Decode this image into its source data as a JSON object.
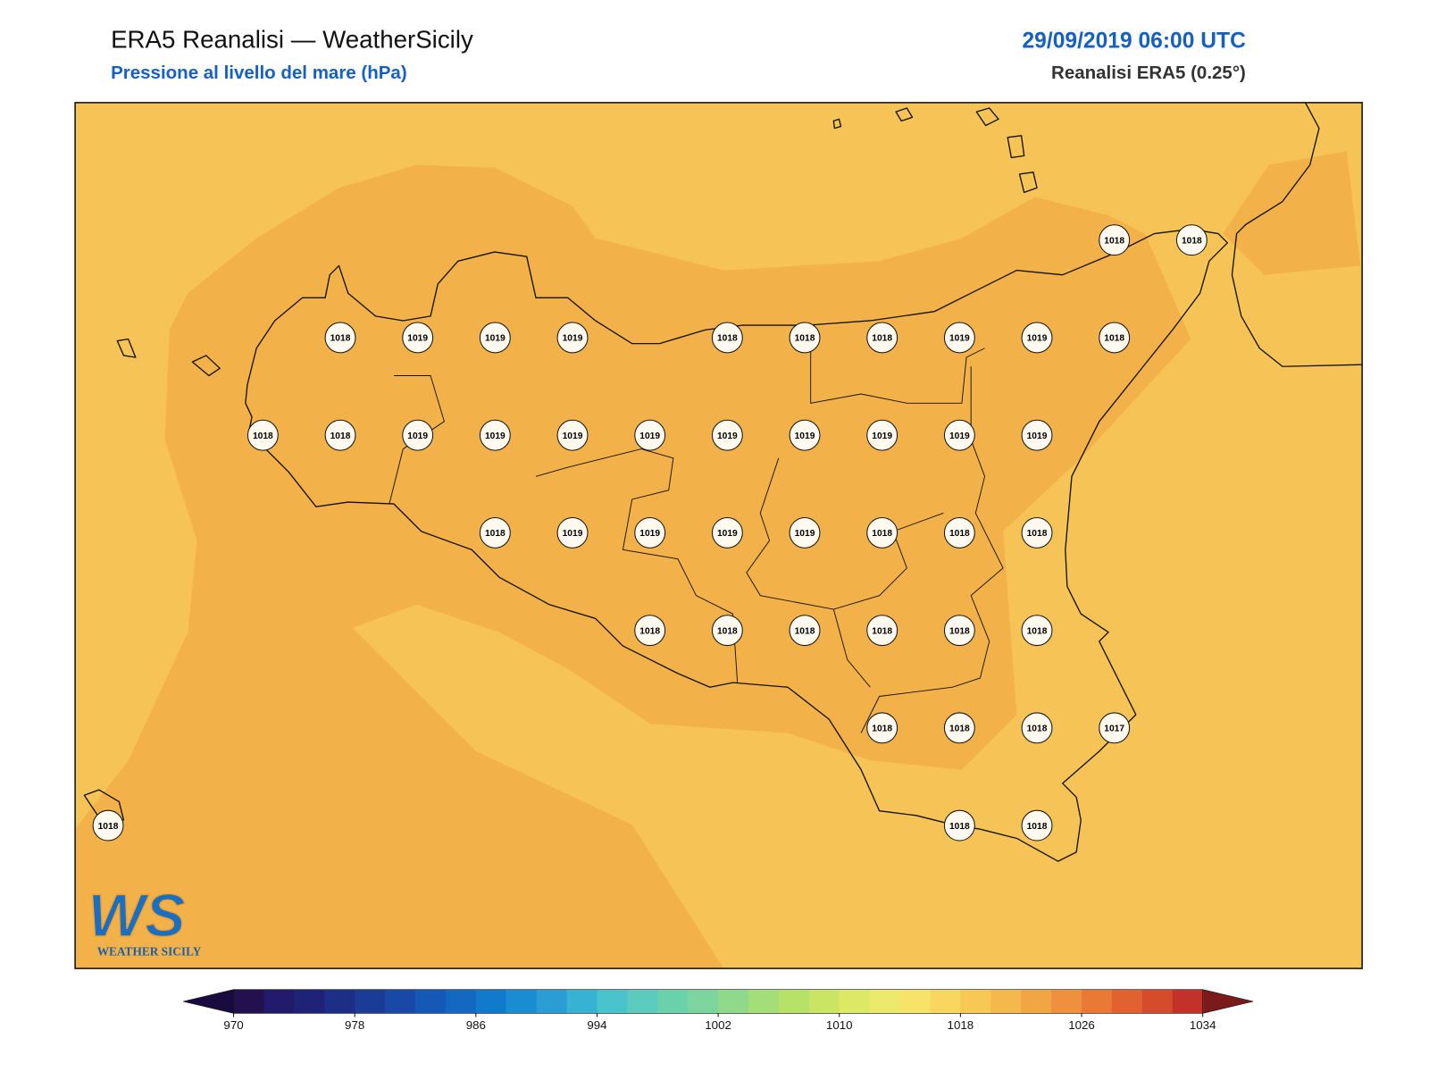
{
  "header": {
    "title": "ERA5 Reanalisi — WeatherSicily",
    "subtitle": "Pressione al livello del mare (hPa)",
    "date": "29/09/2019 06:00 UTC",
    "source": "Reanalisi ERA5 (0.25°)"
  },
  "map": {
    "station_values": [
      [
        null,
        null,
        null,
        null,
        null,
        null,
        null,
        null,
        null,
        null,
        null,
        null,
        null,
        1018,
        1018
      ],
      [
        null,
        null,
        null,
        1018,
        1019,
        1019,
        1019,
        null,
        1018,
        1018,
        1018,
        1019,
        1019,
        1018,
        null
      ],
      [
        null,
        null,
        1018,
        1018,
        1019,
        1019,
        1019,
        1019,
        1019,
        1019,
        1019,
        1019,
        1019,
        null,
        null
      ],
      [
        null,
        null,
        null,
        null,
        null,
        1018,
        1019,
        1019,
        1019,
        1019,
        1018,
        1018,
        1018,
        null,
        null
      ],
      [
        null,
        null,
        null,
        null,
        null,
        null,
        null,
        1018,
        1018,
        1018,
        1018,
        1018,
        1018,
        null,
        null
      ],
      [
        null,
        null,
        null,
        null,
        null,
        null,
        null,
        null,
        null,
        null,
        1018,
        1018,
        1018,
        1017,
        null
      ],
      [
        1018,
        null,
        null,
        null,
        null,
        null,
        null,
        null,
        null,
        null,
        null,
        1018,
        1018,
        null,
        null
      ]
    ]
  },
  "colorbar": {
    "range": [
      970,
      1034
    ],
    "ticks": [
      970,
      978,
      986,
      994,
      1002,
      1010,
      1018,
      1026,
      1034
    ],
    "colors": [
      "#23104f",
      "#221a6b",
      "#1f2378",
      "#1d2e86",
      "#1a3b96",
      "#1849a6",
      "#1559b6",
      "#1368c2",
      "#117acb",
      "#1a8cd2",
      "#2a9ed4",
      "#37b2d2",
      "#4ac3cc",
      "#5bcbbd",
      "#6ad1ad",
      "#7bd59d",
      "#8fda8a",
      "#a3de78",
      "#b7e268",
      "#c9e563",
      "#dbe967",
      "#ebe96c",
      "#f7e26a",
      "#f9d660",
      "#f8c855",
      "#f5b84c",
      "#f2a544",
      "#ee903d",
      "#e97a35",
      "#e1622e",
      "#d44c2b",
      "#c33229"
    ],
    "under_color": "#1a0b3e",
    "over_color": "#7a1a1a"
  },
  "logo": {
    "mark": "WS",
    "name": "WEATHER SICILY"
  }
}
